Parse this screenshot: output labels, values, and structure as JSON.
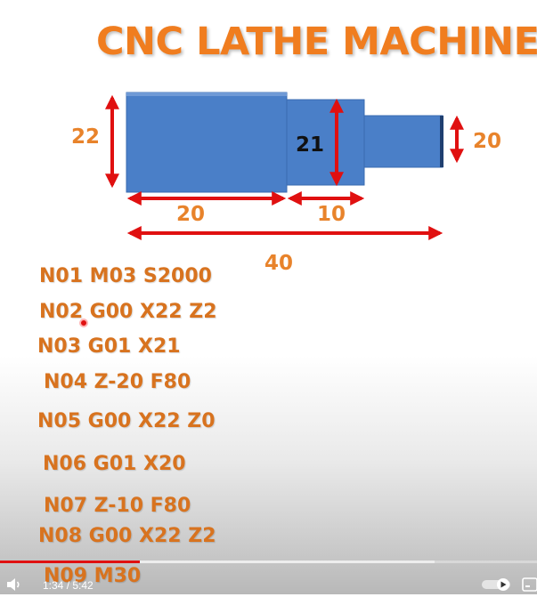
{
  "title": "CNC LATHE MACHINE",
  "diagram": {
    "dim_left_height": "22",
    "dim_mid_height": "21",
    "dim_right_height": "20",
    "dim_len_first": "20",
    "dim_len_second": "10",
    "dim_total_length": "40",
    "colors": {
      "workpiece": "#4a7fc8",
      "arrow": "#e01010",
      "dimension_text": "#e8832b"
    }
  },
  "program_lines": [
    "N01 M03 S2000",
    "N02 G00 X22 Z2",
    "N03 G01 X21",
    "N04 Z-20 F80",
    "N05 G00 X22 Z0",
    "N06 G01 X20",
    "N07 Z-10 F80",
    "N08 G00 X22 Z2",
    "N09 M30"
  ],
  "player": {
    "time": "1:34 / 5:42",
    "progress_fraction": 0.26,
    "buffer_fraction": 0.81,
    "icons": [
      "volume-icon",
      "autoplay-toggle-icon",
      "subtitles-icon"
    ],
    "colors": {
      "played": "#e01010"
    }
  }
}
